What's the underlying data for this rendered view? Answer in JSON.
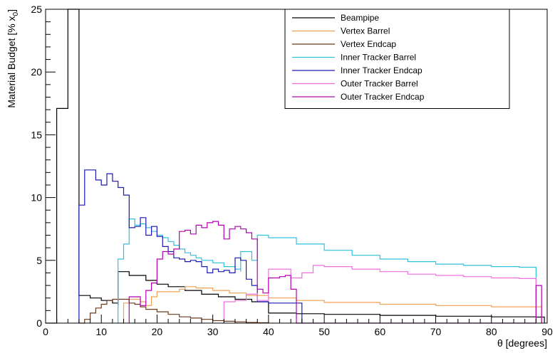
{
  "chart_data": {
    "type": "line",
    "step": true,
    "xlabel": "θ [degrees]",
    "ylabel_prefix": "Material Budget [% x",
    "ylabel_sub": "0",
    "ylabel_suffix": "]",
    "xlim": [
      0,
      90
    ],
    "ylim": [
      0,
      25
    ],
    "xticks": [
      0,
      10,
      20,
      30,
      40,
      50,
      60,
      70,
      80,
      90
    ],
    "yticks": [
      0,
      5,
      10,
      15,
      20,
      25
    ],
    "grid": false,
    "legend_position": "top-right",
    "series": [
      {
        "name": "Beampipe",
        "color": "#000000",
        "points": [
          [
            0,
            0
          ],
          [
            2,
            17.1
          ],
          [
            4,
            17.1
          ],
          [
            4,
            25
          ],
          [
            6,
            25
          ],
          [
            6,
            2.2
          ],
          [
            8,
            2.0
          ],
          [
            10,
            1.8
          ],
          [
            12,
            1.6
          ],
          [
            13,
            1.4
          ],
          [
            13,
            4.1
          ],
          [
            15,
            3.8
          ],
          [
            18,
            3.4
          ],
          [
            20,
            3.1
          ],
          [
            22,
            2.9
          ],
          [
            25,
            2.6
          ],
          [
            28,
            2.3
          ],
          [
            31,
            2.1
          ],
          [
            34,
            1.9
          ],
          [
            37,
            1.7
          ],
          [
            40,
            1.6
          ],
          [
            40,
            0.8
          ],
          [
            45,
            0.75
          ],
          [
            50,
            0.7
          ],
          [
            60,
            0.62
          ],
          [
            70,
            0.55
          ],
          [
            80,
            0.5
          ],
          [
            88,
            0.48
          ],
          [
            89.5,
            0.48
          ],
          [
            89.5,
            0
          ]
        ]
      },
      {
        "name": "Vertex Barrel",
        "color": "#f0a050",
        "points": [
          [
            14,
            0
          ],
          [
            14,
            1.6
          ],
          [
            15,
            1.9
          ],
          [
            16,
            1.9
          ],
          [
            17,
            1.7
          ],
          [
            18,
            1.4
          ],
          [
            19,
            1.4
          ],
          [
            19,
            2.1
          ],
          [
            20,
            2.2
          ],
          [
            20,
            2.5
          ],
          [
            22,
            2.5
          ],
          [
            24,
            2.7
          ],
          [
            25,
            2.9
          ],
          [
            27,
            2.8
          ],
          [
            30,
            2.6
          ],
          [
            33,
            2.4
          ],
          [
            36,
            2.2
          ],
          [
            40,
            2.0
          ],
          [
            45,
            1.8
          ],
          [
            50,
            1.65
          ],
          [
            60,
            1.5
          ],
          [
            70,
            1.4
          ],
          [
            80,
            1.3
          ],
          [
            89,
            1.25
          ],
          [
            89,
            0
          ]
        ]
      },
      {
        "name": "Vertex Endcap",
        "color": "#6b3a1e",
        "points": [
          [
            6,
            0
          ],
          [
            7,
            0.3
          ],
          [
            8,
            0.8
          ],
          [
            9,
            1.2
          ],
          [
            10,
            1.5
          ],
          [
            11,
            1.8
          ],
          [
            12,
            1.9
          ],
          [
            13,
            1.9
          ],
          [
            15,
            1.6
          ],
          [
            16,
            1.5
          ],
          [
            17,
            1.3
          ],
          [
            18,
            1.1
          ],
          [
            20,
            0.9
          ],
          [
            22,
            0.7
          ],
          [
            24,
            0.5
          ],
          [
            26,
            0.4
          ],
          [
            28,
            0.3
          ],
          [
            30,
            0.2
          ],
          [
            32,
            0.15
          ],
          [
            34,
            0.1
          ],
          [
            36,
            0.05
          ],
          [
            38,
            0.03
          ],
          [
            40,
            0.02
          ],
          [
            40,
            0
          ]
        ]
      },
      {
        "name": "Inner Tracker Barrel",
        "color": "#30c0e0",
        "points": [
          [
            13,
            0
          ],
          [
            13,
            5.1
          ],
          [
            14,
            6.3
          ],
          [
            15,
            8.3
          ],
          [
            16,
            7.8
          ],
          [
            17,
            7.9
          ],
          [
            18,
            7.6
          ],
          [
            19,
            7.3
          ],
          [
            20,
            7.0
          ],
          [
            21,
            6.8
          ],
          [
            22,
            6.5
          ],
          [
            23,
            6.2
          ],
          [
            24,
            5.9
          ],
          [
            25,
            5.6
          ],
          [
            26,
            5.4
          ],
          [
            27,
            5.2
          ],
          [
            28,
            5.0
          ],
          [
            30,
            4.8
          ],
          [
            32,
            4.5
          ],
          [
            34,
            4.3
          ],
          [
            35,
            4.1
          ],
          [
            35,
            5.7
          ],
          [
            37,
            5.5
          ],
          [
            37,
            5.0
          ],
          [
            38,
            5.0
          ],
          [
            38,
            7.0
          ],
          [
            40,
            6.8
          ],
          [
            45,
            6.3
          ],
          [
            50,
            5.8
          ],
          [
            55,
            5.4
          ],
          [
            60,
            5.1
          ],
          [
            65,
            4.9
          ],
          [
            70,
            4.7
          ],
          [
            75,
            4.6
          ],
          [
            80,
            4.5
          ],
          [
            85,
            4.45
          ],
          [
            88,
            4.4
          ],
          [
            88,
            0
          ]
        ]
      },
      {
        "name": "Inner Tracker Endcap",
        "color": "#1a1ab5",
        "points": [
          [
            6,
            0
          ],
          [
            6,
            9.4
          ],
          [
            7,
            12.2
          ],
          [
            9,
            11.4
          ],
          [
            10,
            11.0
          ],
          [
            11,
            11.9
          ],
          [
            12,
            11.3
          ],
          [
            13,
            10.8
          ],
          [
            14,
            10.2
          ],
          [
            15,
            7.6
          ],
          [
            16,
            7.7
          ],
          [
            17,
            8.4
          ],
          [
            18,
            7.0
          ],
          [
            19,
            7.7
          ],
          [
            20,
            6.9
          ],
          [
            21,
            6.1
          ],
          [
            22,
            5.7
          ],
          [
            23,
            5.2
          ],
          [
            24,
            5.1
          ],
          [
            25,
            4.9
          ],
          [
            26,
            5.0
          ],
          [
            27,
            4.9
          ],
          [
            28,
            4.5
          ],
          [
            29,
            4.0
          ],
          [
            30,
            4.3
          ],
          [
            31,
            4.1
          ],
          [
            32,
            4.2
          ],
          [
            33,
            4.0
          ],
          [
            34,
            5.2
          ],
          [
            35,
            5.0
          ],
          [
            36,
            3.5
          ],
          [
            37,
            3.0
          ],
          [
            38,
            1.7
          ],
          [
            40,
            1.6
          ],
          [
            42,
            1.6
          ],
          [
            45,
            1.6
          ],
          [
            46,
            0
          ]
        ]
      },
      {
        "name": "Outer Tracker Barrel",
        "color": "#f070e0",
        "points": [
          [
            32,
            0
          ],
          [
            32,
            1.7
          ],
          [
            34,
            1.8
          ],
          [
            36,
            1.9
          ],
          [
            36,
            2.3
          ],
          [
            38,
            2.4
          ],
          [
            38,
            1.8
          ],
          [
            40,
            1.9
          ],
          [
            40,
            4.3
          ],
          [
            44,
            4.3
          ],
          [
            44,
            3.6
          ],
          [
            46,
            3.7
          ],
          [
            46,
            4.0
          ],
          [
            48,
            4.0
          ],
          [
            48,
            4.6
          ],
          [
            50,
            4.5
          ],
          [
            55,
            4.3
          ],
          [
            60,
            4.1
          ],
          [
            65,
            3.9
          ],
          [
            70,
            3.8
          ],
          [
            75,
            3.7
          ],
          [
            80,
            3.6
          ],
          [
            85,
            3.55
          ],
          [
            88,
            3.5
          ],
          [
            88,
            0
          ]
        ]
      },
      {
        "name": "Outer Tracker Endcap",
        "color": "#b000b0",
        "points": [
          [
            15,
            0
          ],
          [
            15,
            2.1
          ],
          [
            16,
            2.1
          ],
          [
            17,
            1.4
          ],
          [
            18,
            2.6
          ],
          [
            19,
            3.2
          ],
          [
            20,
            5.1
          ],
          [
            21,
            5.7
          ],
          [
            22,
            5.5
          ],
          [
            23,
            5.9
          ],
          [
            24,
            7.3
          ],
          [
            25,
            7.4
          ],
          [
            26,
            7.1
          ],
          [
            27,
            7.8
          ],
          [
            28,
            7.6
          ],
          [
            29,
            8.0
          ],
          [
            30,
            8.1
          ],
          [
            31,
            7.8
          ],
          [
            32,
            6.7
          ],
          [
            33,
            7.5
          ],
          [
            34,
            7.7
          ],
          [
            35,
            7.5
          ],
          [
            36,
            7.2
          ],
          [
            37,
            6.7
          ],
          [
            38,
            2.7
          ],
          [
            39,
            2.4
          ],
          [
            40,
            3.6
          ],
          [
            42,
            3.7
          ],
          [
            43,
            3.8
          ],
          [
            44,
            2.7
          ],
          [
            45,
            0
          ],
          [
            88,
            0
          ],
          [
            88,
            3.0
          ],
          [
            89,
            3.0
          ],
          [
            89,
            0
          ]
        ]
      }
    ]
  }
}
